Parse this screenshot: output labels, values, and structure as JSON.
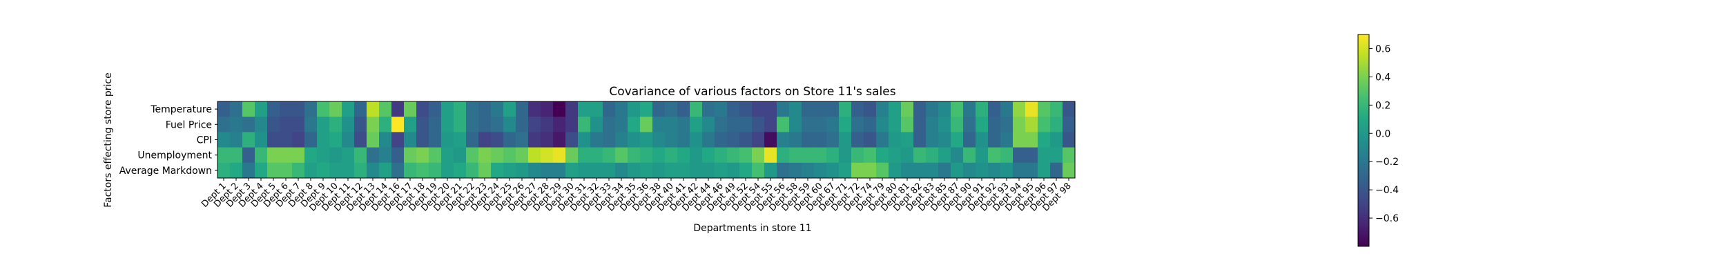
{
  "chart_data": {
    "type": "heatmap",
    "title": "Covariance of various factors on Store 11's sales",
    "xlabel": "Departments in store 11",
    "ylabel": "Factors effecting store price",
    "y_categories": [
      "Temperature",
      "Fuel Price",
      "CPI",
      "Unemployment",
      "Average Markdown"
    ],
    "x_categories": [
      "Dept 1",
      "Dept 2",
      "Dept 3",
      "Dept 4",
      "Dept 5",
      "Dept 6",
      "Dept 7",
      "Dept 8",
      "Dept 9",
      "Dept 10",
      "Dept 11",
      "Dept 12",
      "Dept 13",
      "Dept 14",
      "Dept 16",
      "Dept 17",
      "Dept 18",
      "Dept 19",
      "Dept 20",
      "Dept 21",
      "Dept 22",
      "Dept 23",
      "Dept 24",
      "Dept 25",
      "Dept 26",
      "Dept 27",
      "Dept 28",
      "Dept 29",
      "Dept 30",
      "Dept 31",
      "Dept 32",
      "Dept 33",
      "Dept 34",
      "Dept 35",
      "Dept 36",
      "Dept 38",
      "Dept 40",
      "Dept 41",
      "Dept 42",
      "Dept 44",
      "Dept 46",
      "Dept 49",
      "Dept 52",
      "Dept 54",
      "Dept 55",
      "Dept 56",
      "Dept 58",
      "Dept 59",
      "Dept 60",
      "Dept 67",
      "Dept 71",
      "Dept 72",
      "Dept 74",
      "Dept 79",
      "Dept 80",
      "Dept 81",
      "Dept 82",
      "Dept 83",
      "Dept 85",
      "Dept 87",
      "Dept 90",
      "Dept 91",
      "Dept 92",
      "Dept 93",
      "Dept 94",
      "Dept 95",
      "Dept 96",
      "Dept 97",
      "Dept 98"
    ],
    "values": [
      [
        -0.35,
        -0.25,
        0.3,
        0.05,
        -0.35,
        -0.4,
        -0.4,
        -0.25,
        0.25,
        0.35,
        0.05,
        -0.3,
        0.55,
        0.3,
        -0.55,
        0.35,
        -0.45,
        -0.35,
        0.05,
        0.15,
        -0.25,
        -0.3,
        -0.2,
        0.05,
        -0.3,
        -0.6,
        -0.65,
        -0.8,
        -0.55,
        0.05,
        0.05,
        -0.3,
        -0.2,
        0.0,
        0.1,
        -0.3,
        -0.25,
        -0.35,
        0.2,
        -0.25,
        -0.2,
        -0.35,
        -0.4,
        -0.5,
        -0.5,
        -0.2,
        -0.1,
        -0.3,
        -0.3,
        -0.3,
        0.15,
        -0.35,
        -0.4,
        -0.15,
        0.05,
        0.35,
        -0.35,
        -0.2,
        -0.1,
        0.25,
        -0.2,
        0.15,
        -0.35,
        -0.2,
        0.45,
        0.65,
        0.3,
        0.2,
        -0.4
      ],
      [
        -0.25,
        -0.2,
        -0.25,
        -0.1,
        -0.4,
        -0.45,
        -0.45,
        -0.2,
        0.05,
        0.15,
        -0.05,
        -0.4,
        0.4,
        0.15,
        0.7,
        0.05,
        -0.4,
        -0.3,
        0.05,
        0.15,
        -0.25,
        -0.3,
        -0.25,
        -0.1,
        -0.3,
        -0.5,
        -0.55,
        -0.65,
        -0.55,
        0.2,
        -0.05,
        -0.25,
        -0.2,
        0.1,
        0.35,
        -0.15,
        -0.15,
        -0.2,
        0.05,
        -0.1,
        -0.25,
        -0.3,
        -0.3,
        -0.4,
        -0.5,
        0.25,
        -0.1,
        -0.25,
        -0.25,
        -0.2,
        0.1,
        -0.25,
        -0.3,
        -0.1,
        0.05,
        0.3,
        -0.35,
        -0.15,
        -0.05,
        0.2,
        -0.25,
        0.1,
        -0.3,
        -0.25,
        0.4,
        0.5,
        0.25,
        0.15,
        -0.35
      ],
      [
        -0.1,
        -0.15,
        0.15,
        -0.05,
        -0.45,
        -0.45,
        -0.5,
        -0.3,
        0.05,
        0.1,
        -0.1,
        -0.45,
        0.35,
        -0.1,
        -0.5,
        -0.1,
        -0.4,
        -0.3,
        0.0,
        0.05,
        -0.3,
        -0.5,
        -0.45,
        -0.3,
        -0.25,
        -0.55,
        -0.6,
        -0.7,
        -0.45,
        -0.05,
        -0.2,
        -0.25,
        -0.15,
        -0.05,
        0.0,
        -0.1,
        -0.15,
        -0.2,
        -0.05,
        -0.2,
        -0.3,
        -0.35,
        -0.4,
        -0.5,
        -0.75,
        -0.15,
        -0.2,
        -0.3,
        -0.3,
        -0.25,
        0.0,
        -0.35,
        -0.4,
        -0.2,
        0.0,
        0.05,
        -0.35,
        -0.15,
        -0.1,
        0.1,
        -0.3,
        -0.05,
        -0.3,
        -0.2,
        0.4,
        0.4,
        0.1,
        0.0,
        -0.4
      ],
      [
        0.2,
        0.2,
        -0.35,
        0.2,
        0.4,
        0.4,
        0.4,
        0.1,
        0.05,
        0.0,
        0.05,
        0.2,
        -0.25,
        -0.15,
        -0.35,
        0.35,
        0.4,
        0.3,
        0.05,
        0.0,
        0.3,
        0.4,
        0.35,
        0.3,
        0.35,
        0.55,
        0.6,
        0.65,
        0.35,
        0.15,
        0.15,
        0.2,
        0.3,
        0.2,
        0.15,
        0.1,
        0.15,
        0.1,
        0.0,
        0.1,
        0.15,
        0.2,
        0.25,
        0.4,
        0.65,
        0.15,
        0.2,
        0.2,
        0.2,
        0.15,
        0.0,
        0.2,
        0.25,
        0.1,
        0.05,
        0.0,
        0.2,
        0.15,
        0.05,
        -0.1,
        0.2,
        0.0,
        0.25,
        0.2,
        -0.35,
        -0.35,
        0.05,
        0.05,
        0.3
      ],
      [
        0.15,
        0.1,
        -0.2,
        0.1,
        0.3,
        0.3,
        0.2,
        0.05,
        0.1,
        0.05,
        0.05,
        0.15,
        -0.1,
        0.05,
        -0.25,
        0.2,
        0.25,
        0.2,
        0.05,
        0.1,
        0.2,
        0.35,
        0.1,
        0.05,
        0.0,
        -0.1,
        -0.15,
        -0.15,
        0.05,
        0.0,
        0.0,
        0.0,
        -0.1,
        0.0,
        0.05,
        0.0,
        0.05,
        0.05,
        0.0,
        0.0,
        0.05,
        0.0,
        0.1,
        0.25,
        0.0,
        -0.25,
        -0.2,
        -0.15,
        -0.1,
        -0.05,
        0.05,
        0.4,
        0.4,
        0.3,
        0.0,
        -0.1,
        -0.1,
        -0.1,
        -0.2,
        0.0,
        -0.1,
        -0.05,
        -0.1,
        -0.05,
        -0.2,
        -0.2,
        0.05,
        -0.3,
        0.35
      ]
    ],
    "colorbar": {
      "colormap": "viridis",
      "range": [
        -0.8,
        0.7
      ],
      "ticks": [
        "0.6",
        "0.4",
        "0.2",
        "0.0",
        "−0.2",
        "−0.4",
        "−0.6"
      ],
      "tick_values": [
        0.6,
        0.4,
        0.2,
        0.0,
        -0.2,
        -0.4,
        -0.6
      ]
    },
    "grid": false
  }
}
